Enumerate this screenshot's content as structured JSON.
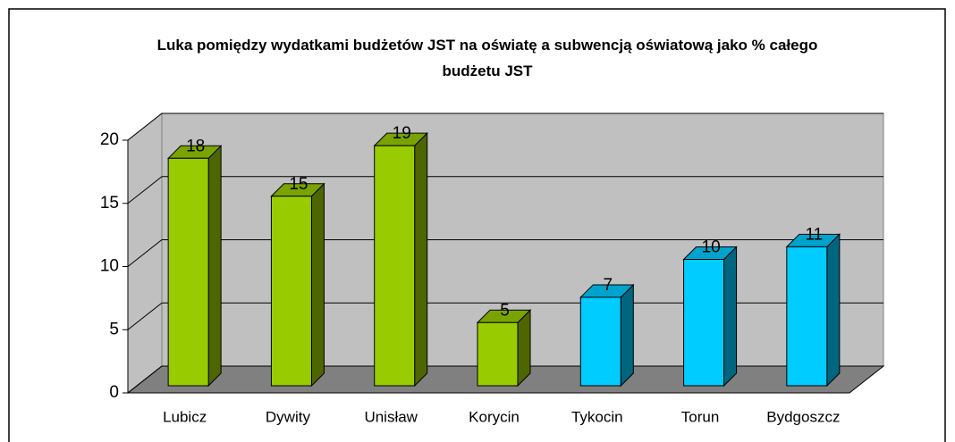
{
  "chart_data": {
    "type": "bar3d",
    "title": "Luka pomiędzy wydatkami budżetów JST na oświatę a subwencją oświatową jako % całego budżetu JST",
    "categories": [
      "Lubicz",
      "Dywity",
      "Unisław",
      "Korycin",
      "Tykocin",
      "Torun",
      "Bydgoszcz"
    ],
    "values": [
      18,
      15,
      19,
      5,
      7,
      10,
      11
    ],
    "colors": [
      "#99cc00",
      "#99cc00",
      "#99cc00",
      "#99cc00",
      "#00ccff",
      "#00ccff",
      "#00ccff"
    ],
    "ylim": [
      0,
      20
    ],
    "yticks": [
      0,
      5,
      10,
      15,
      20
    ],
    "grid": true
  }
}
